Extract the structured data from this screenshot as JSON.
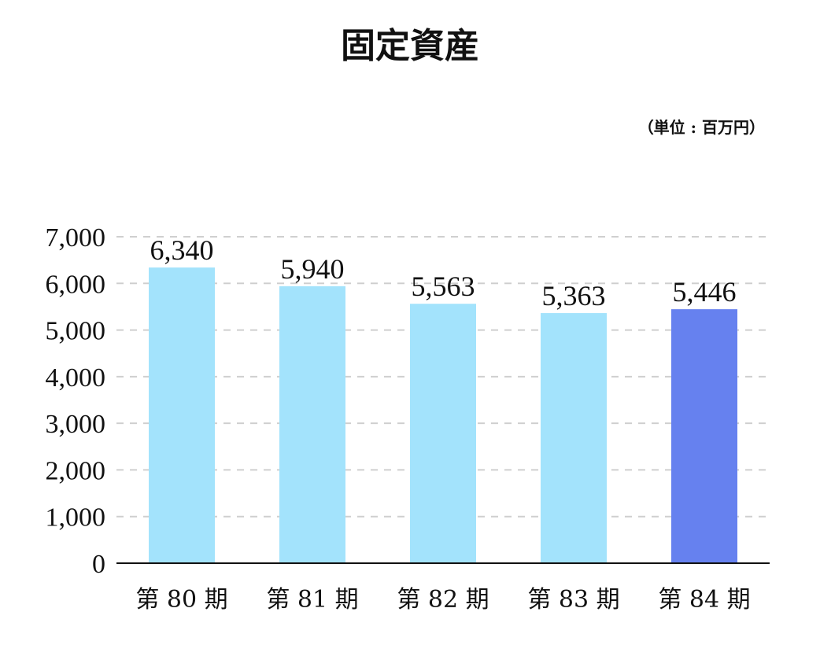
{
  "chart_data": {
    "type": "bar",
    "title": "固定資産",
    "unit_note": "（単位 : 百万円）",
    "categories": [
      "第 80 期",
      "第 81 期",
      "第 82 期",
      "第 83 期",
      "第 84 期"
    ],
    "values": [
      6340,
      5940,
      5563,
      5363,
      5446
    ],
    "value_labels": [
      "6,340",
      "5,940",
      "5,563",
      "5,363",
      "5,446"
    ],
    "y_ticks": [
      "0",
      "1,000",
      "2,000",
      "3,000",
      "4,000",
      "5,000",
      "6,000",
      "7,000"
    ],
    "ylim": [
      0,
      7000
    ],
    "grid": true,
    "bar_colors": [
      "#a3e3fc",
      "#a3e3fc",
      "#a3e3fc",
      "#a3e3fc",
      "#6681ef"
    ]
  }
}
